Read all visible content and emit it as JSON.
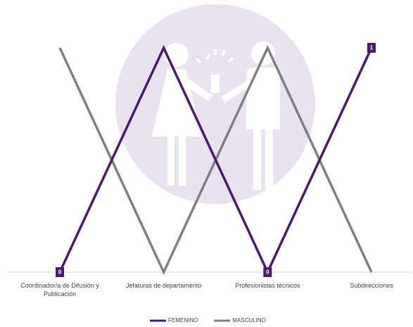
{
  "chart_data": {
    "type": "line",
    "categories": [
      "Coordinador/a de Difusión y Publicación",
      "Jefaturas de departamento",
      "Profesionistas técnicos",
      "Subdirecciones"
    ],
    "series": [
      {
        "name": "FEMENINO",
        "color": "#4b1a6b",
        "values": [
          0,
          1,
          0,
          1
        ],
        "value_labels": [
          "0",
          null,
          "0",
          "1"
        ]
      },
      {
        "name": "MASCULINO",
        "color": "#808080",
        "values": [
          1,
          0,
          1,
          0
        ]
      }
    ],
    "ylim": [
      0,
      1
    ]
  }
}
